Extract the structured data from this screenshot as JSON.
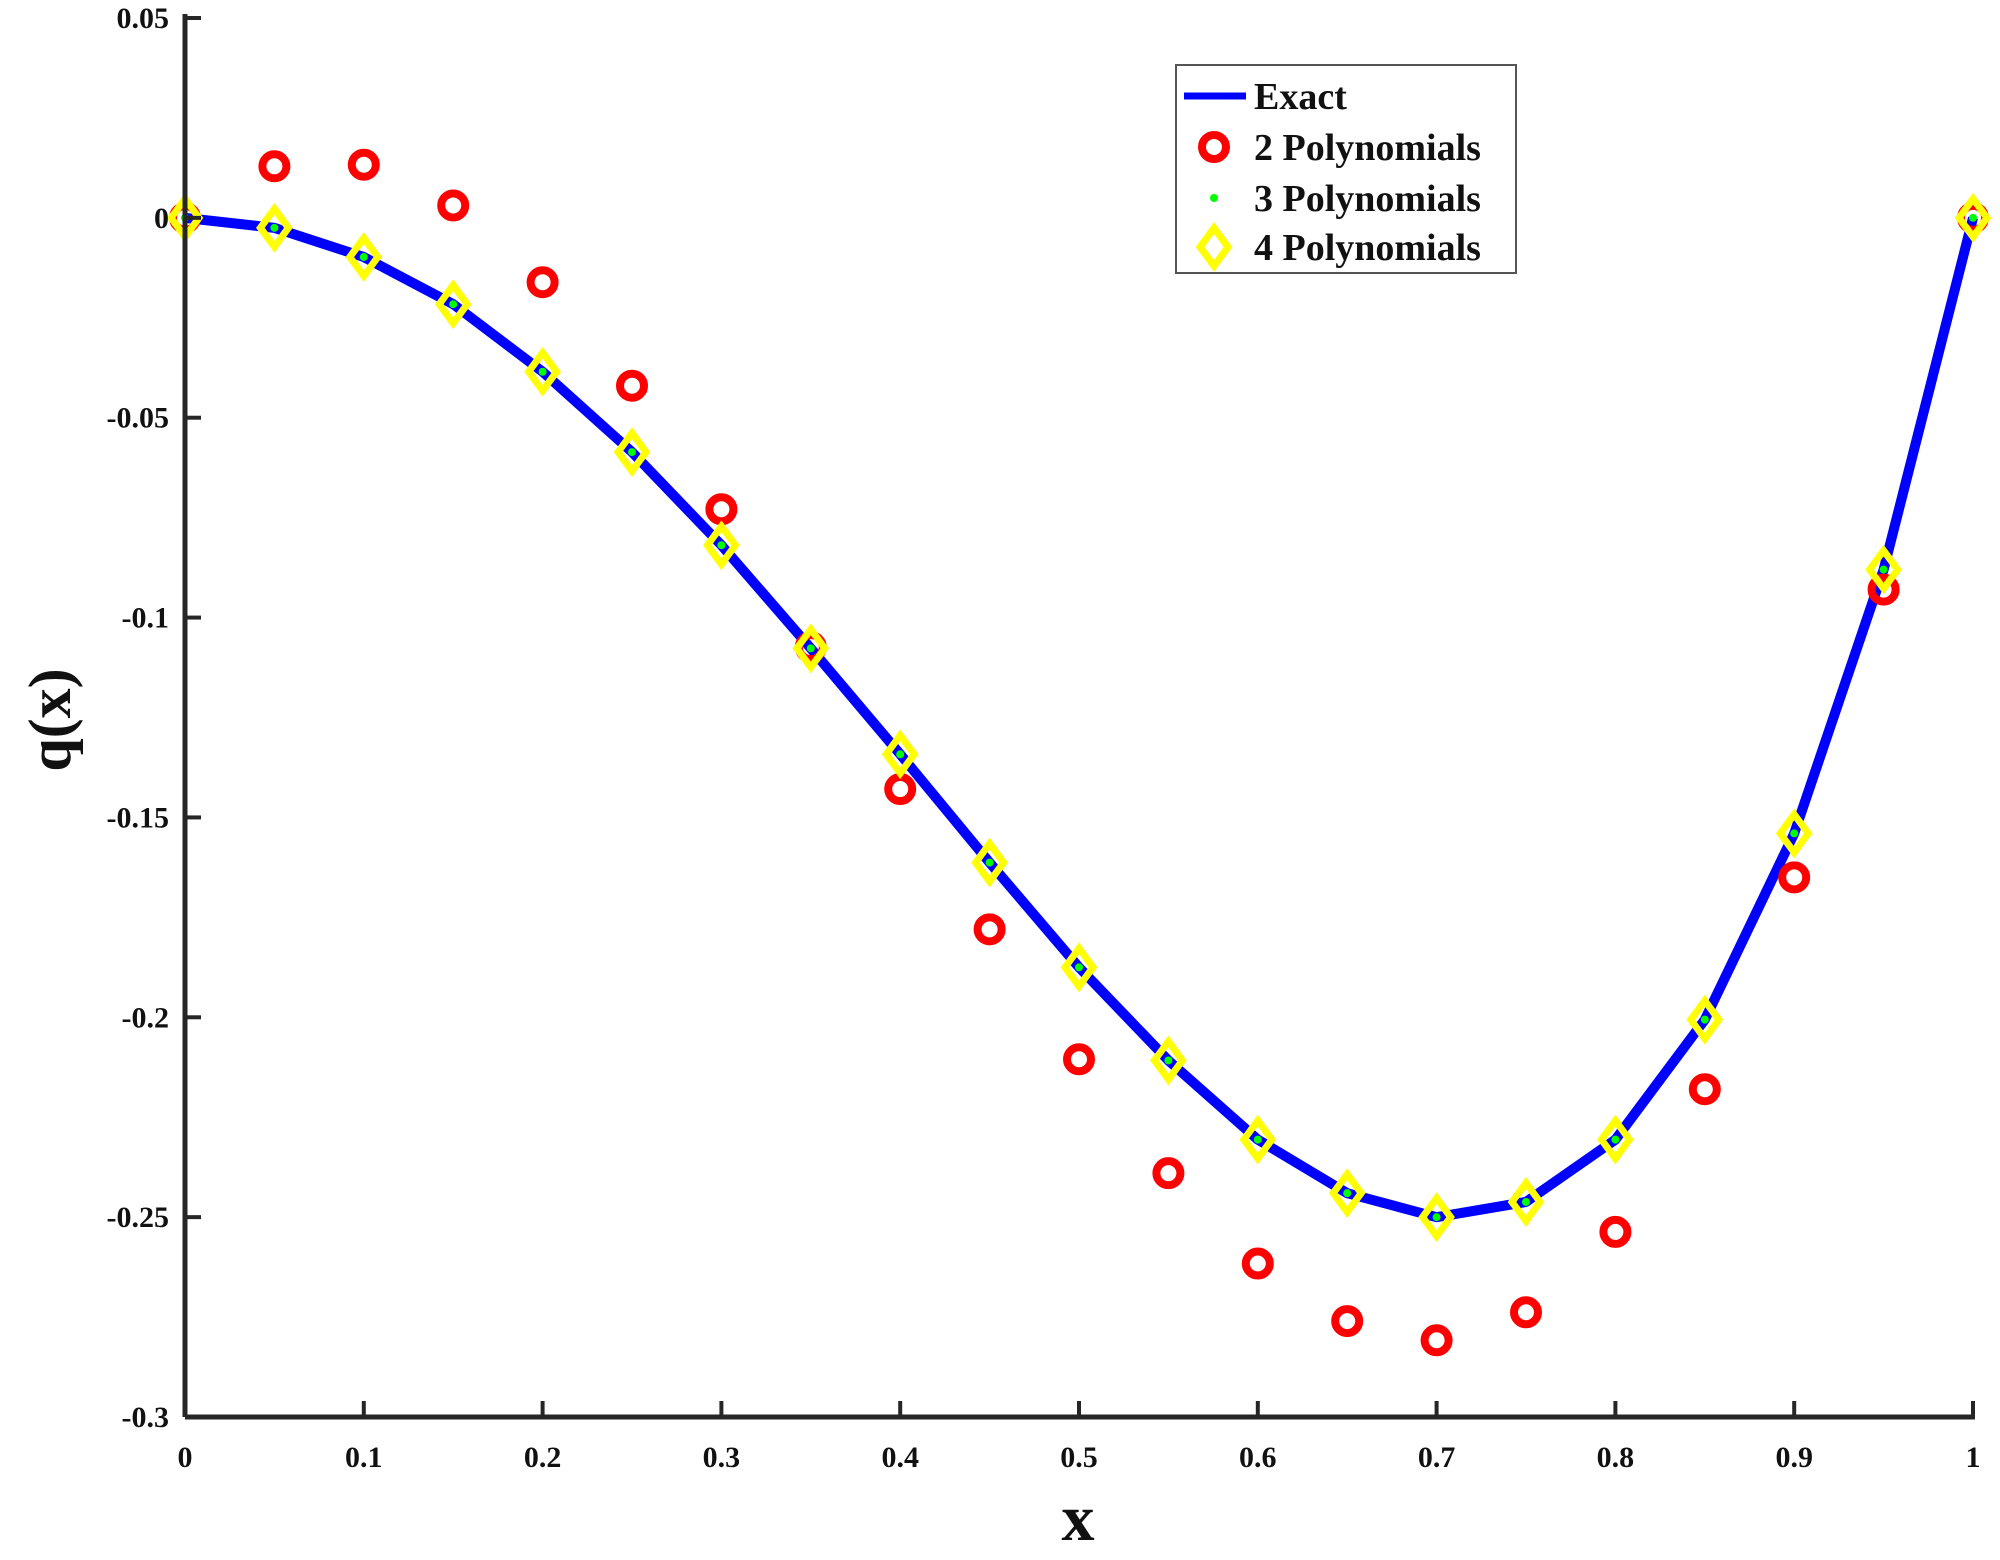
{
  "chart_data": {
    "type": "line",
    "xlabel": "x",
    "ylabel": "q(x)",
    "xlim": [
      0,
      1
    ],
    "ylim": [
      -0.3,
      0.05
    ],
    "xticks": [
      "0",
      "0.1",
      "0.2",
      "0.3",
      "0.4",
      "0.5",
      "0.6",
      "0.7",
      "0.8",
      "0.9",
      "1"
    ],
    "yticks": [
      "0.05",
      "0",
      "-0.05",
      "-0.1",
      "-0.15",
      "-0.2",
      "-0.25",
      "-0.3"
    ],
    "grid": false,
    "legend_position": "top-right",
    "x": [
      0,
      0.05,
      0.1,
      0.15,
      0.2,
      0.25,
      0.3,
      0.35,
      0.4,
      0.45,
      0.5,
      0.55,
      0.6,
      0.65,
      0.7,
      0.75,
      0.8,
      0.85,
      0.9,
      0.95,
      1
    ],
    "series": [
      {
        "name": "Exact",
        "style": "line",
        "color": "#0000ff",
        "values": [
          0,
          -0.0025,
          -0.0098,
          -0.0216,
          -0.0385,
          -0.0586,
          -0.0819,
          -0.1077,
          -0.1342,
          -0.1613,
          -0.1875,
          -0.2108,
          -0.2306,
          -0.244,
          -0.25,
          -0.2462,
          -0.2306,
          -0.2006,
          -0.154,
          -0.088,
          0
        ]
      },
      {
        "name": "2 Polynomials",
        "style": "circle",
        "color": "#ff0000",
        "values": [
          0,
          0.0129,
          0.0133,
          0.0031,
          -0.0161,
          -0.042,
          -0.0729,
          -0.1074,
          -0.1429,
          -0.178,
          -0.2105,
          -0.239,
          -0.2616,
          -0.276,
          -0.2808,
          -0.2738,
          -0.2537,
          -0.218,
          -0.165,
          -0.093,
          0
        ]
      },
      {
        "name": "3 Polynomials",
        "style": "dot",
        "color": "#00ff00",
        "values": [
          0,
          -0.0025,
          -0.0098,
          -0.0216,
          -0.0385,
          -0.0586,
          -0.0819,
          -0.1077,
          -0.1342,
          -0.1613,
          -0.1875,
          -0.2108,
          -0.2306,
          -0.244,
          -0.25,
          -0.2462,
          -0.2306,
          -0.2006,
          -0.154,
          -0.088,
          0
        ]
      },
      {
        "name": "4 Polynomials",
        "style": "diamond",
        "color": "#ffff00",
        "values": [
          0,
          -0.0025,
          -0.0098,
          -0.0216,
          -0.0385,
          -0.0586,
          -0.0819,
          -0.1077,
          -0.1342,
          -0.1613,
          -0.1875,
          -0.2108,
          -0.2306,
          -0.244,
          -0.25,
          -0.2462,
          -0.2306,
          -0.2006,
          -0.154,
          -0.088,
          0
        ]
      }
    ]
  }
}
